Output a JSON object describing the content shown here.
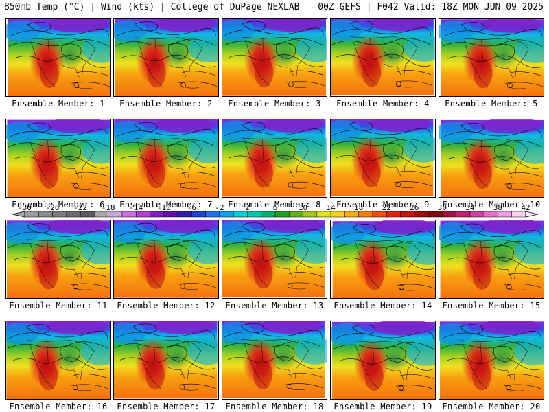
{
  "header": {
    "left": "850mb Temp (°C) | Wind (kts) | College of DuPage NEXLAB",
    "right": "00Z GEFS | F042 Valid: 18Z MON JUN 09 2025"
  },
  "caption_prefix": "Ensemble Member: ",
  "members": [
    1,
    2,
    3,
    4,
    5,
    6,
    7,
    8,
    9,
    10,
    11,
    12,
    13,
    14,
    15,
    16,
    17,
    18,
    19,
    20
  ],
  "colorbar": {
    "ticks": [
      "-30",
      "-26",
      "-22",
      "-18",
      "-14",
      "-10",
      "-6",
      "-2",
      "2",
      "6",
      "10",
      "14",
      "18",
      "22",
      "26",
      "30",
      "34",
      "38",
      "42"
    ],
    "colors": [
      "#9c9c9c",
      "#8c8c8c",
      "#7c7c7c",
      "#6a6a6a",
      "#5a5a5a",
      "#a8a8a8",
      "#c8a8d8",
      "#d070e0",
      "#b040d0",
      "#8020c0",
      "#6010a8",
      "#3020b0",
      "#2040d0",
      "#2070f0",
      "#10a0f0",
      "#10c8e0",
      "#00c8b0",
      "#00b070",
      "#20a020",
      "#60b020",
      "#a0c820",
      "#e0e020",
      "#f8d020",
      "#f8b010",
      "#f88010",
      "#f05010",
      "#e02010",
      "#c81010",
      "#a00c0c",
      "#800808",
      "#a01040",
      "#c02070",
      "#d040a0",
      "#e070c8",
      "#f0a0e0",
      "#f8d0f0"
    ],
    "unit": "°C"
  }
}
